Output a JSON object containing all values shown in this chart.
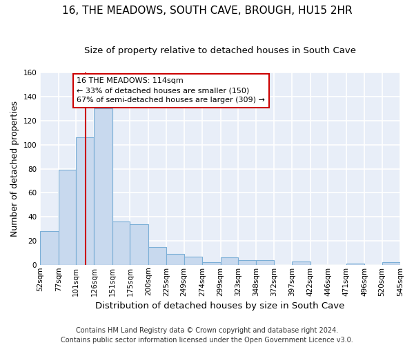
{
  "title": "16, THE MEADOWS, SOUTH CAVE, BROUGH, HU15 2HR",
  "subtitle": "Size of property relative to detached houses in South Cave",
  "xlabel": "Distribution of detached houses by size in South Cave",
  "ylabel": "Number of detached properties",
  "bar_color": "#c8d9ee",
  "bar_edge_color": "#7aaed6",
  "background_color": "#e8eef8",
  "grid_color": "#f5f5ff",
  "vline_x": 114,
  "vline_color": "#cc0000",
  "annotation_line1": "16 THE MEADOWS: 114sqm",
  "annotation_line2": "← 33% of detached houses are smaller (150)",
  "annotation_line3": "67% of semi-detached houses are larger (309) →",
  "annotation_box_color": "#cc0000",
  "footnote": "Contains HM Land Registry data © Crown copyright and database right 2024.\nContains public sector information licensed under the Open Government Licence v3.0.",
  "bin_edges": [
    52,
    77,
    101,
    126,
    151,
    175,
    200,
    225,
    249,
    274,
    299,
    323,
    348,
    372,
    397,
    422,
    446,
    471,
    496,
    520,
    545
  ],
  "bin_counts": [
    28,
    79,
    106,
    130,
    36,
    34,
    15,
    9,
    7,
    2,
    6,
    4,
    4,
    0,
    3,
    0,
    0,
    1,
    0,
    2
  ],
  "ylim": [
    0,
    160
  ],
  "yticks": [
    0,
    20,
    40,
    60,
    80,
    100,
    120,
    140,
    160
  ],
  "title_fontsize": 11,
  "subtitle_fontsize": 9.5,
  "ylabel_fontsize": 9,
  "xlabel_fontsize": 9.5,
  "tick_fontsize": 7.5,
  "footnote_fontsize": 7
}
